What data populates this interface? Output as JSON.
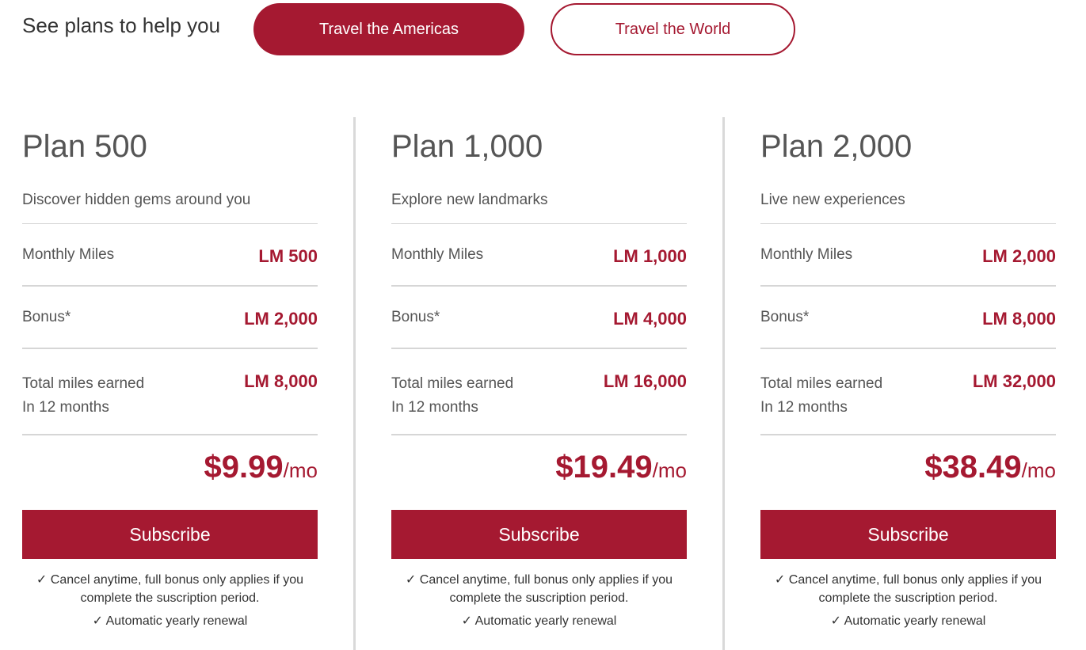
{
  "header": {
    "intro": "See plans to help you",
    "tabs": [
      {
        "label": "Travel the Americas",
        "active": true
      },
      {
        "label": "Travel the World",
        "active": false
      }
    ]
  },
  "accent_color": "#a51931",
  "plans": [
    {
      "title": "Plan 500",
      "subtitle": "Discover hidden gems around you",
      "monthly_label": "Monthly Miles",
      "monthly": "LM 500",
      "bonus_label": "Bonus*",
      "bonus": "LM 2,000",
      "total_label": "Total miles earned",
      "total_sub": "In 12 months",
      "total": "LM 8,000",
      "price": "$9.99",
      "per": "/mo",
      "button": "Subscribe",
      "note1": "✓ Cancel anytime, full bonus only applies if you complete the suscription period.",
      "note2": "✓ Automatic yearly renewal"
    },
    {
      "title": "Plan 1,000",
      "subtitle": "Explore new landmarks",
      "monthly_label": "Monthly Miles",
      "monthly": "LM 1,000",
      "bonus_label": "Bonus*",
      "bonus": "LM 4,000",
      "total_label": "Total miles earned",
      "total_sub": "In 12 months",
      "total": "LM 16,000",
      "price": "$19.49",
      "per": "/mo",
      "button": "Subscribe",
      "note1": "✓ Cancel anytime, full bonus only applies if you complete the suscription period.",
      "note2": "✓ Automatic yearly renewal"
    },
    {
      "title": "Plan 2,000",
      "subtitle": "Live new experiences",
      "monthly_label": "Monthly Miles",
      "monthly": "LM 2,000",
      "bonus_label": "Bonus*",
      "bonus": "LM 8,000",
      "total_label": "Total miles earned",
      "total_sub": "In 12 months",
      "total": "LM 32,000",
      "price": "$38.49",
      "per": "/mo",
      "button": "Subscribe",
      "note1": "✓ Cancel anytime, full bonus only applies if you complete the suscription period.",
      "note2": "✓ Automatic yearly renewal"
    }
  ]
}
